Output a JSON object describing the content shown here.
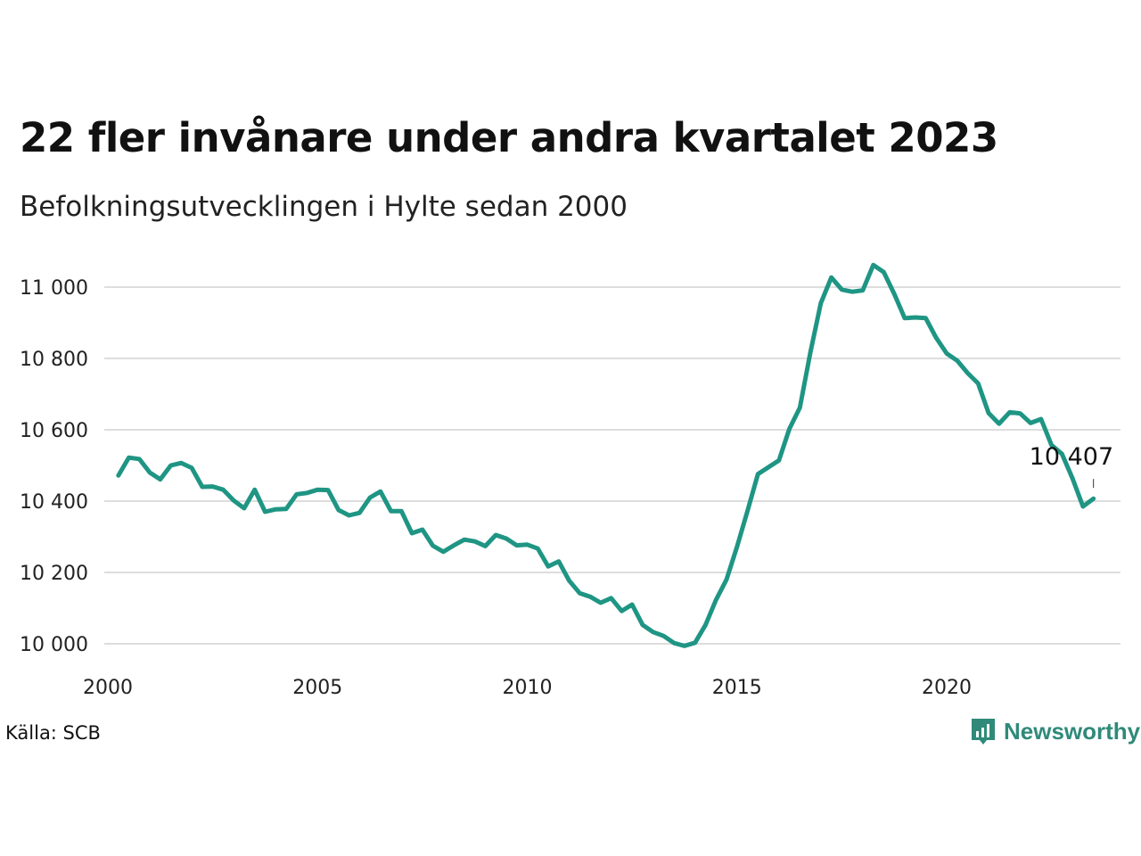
{
  "title": "22 fler invånare under andra kvartalet 2023",
  "subtitle": "Befolkningsutvecklingen i Hylte sedan 2000",
  "source": "Källa: SCB",
  "brand": {
    "name": "Newsworthy",
    "icon": "newsworthy-logo-icon"
  },
  "colors": {
    "line": "#1f9584",
    "grid": "#dddddd",
    "brand": "#2f8a79"
  },
  "chart_data": {
    "type": "line",
    "title": "22 fler invånare under andra kvartalet 2023",
    "subtitle": "Befolkningsutvecklingen i Hylte sedan 2000",
    "xlabel": "",
    "ylabel": "",
    "xlim": [
      2000,
      2024.5
    ],
    "ylim": [
      9950,
      11100
    ],
    "x_ticks": [
      2000,
      2005,
      2010,
      2015,
      2020
    ],
    "x_tick_labels": [
      "2000",
      "2005",
      "2010",
      "2015",
      "2020"
    ],
    "y_ticks": [
      10000,
      10200,
      10400,
      10600,
      10800,
      11000
    ],
    "y_tick_labels": [
      "10 000",
      "10 200",
      "10 400",
      "10 600",
      "10 800",
      "11 000"
    ],
    "grid": "horizontal",
    "last_label": "10 407",
    "series": [
      {
        "x": [
          2000.25,
          2000.5,
          2000.75,
          2001.0,
          2001.25,
          2001.5,
          2001.75,
          2002.0,
          2002.25,
          2002.5,
          2002.75,
          2003.0,
          2003.25,
          2003.5,
          2003.75,
          2004.0,
          2004.25,
          2004.5,
          2004.75,
          2005.0,
          2005.25,
          2005.5,
          2005.75,
          2006.0,
          2006.25,
          2006.5,
          2006.75,
          2007.0,
          2007.25,
          2007.5,
          2007.75,
          2008.0,
          2008.25,
          2008.5,
          2008.75,
          2009.0,
          2009.25,
          2009.5,
          2009.75,
          2010.0,
          2010.25,
          2010.5,
          2010.75,
          2011.0,
          2011.25,
          2011.5,
          2011.75,
          2012.0,
          2012.25,
          2012.5,
          2012.75,
          2013.0,
          2013.25,
          2013.5,
          2013.75,
          2014.0,
          2014.25,
          2014.5,
          2014.75,
          2015.0,
          2015.25,
          2015.5,
          2015.75,
          2016.0,
          2016.25,
          2016.5,
          2016.75,
          2017.0,
          2017.25,
          2017.5,
          2017.75,
          2018.0,
          2018.25,
          2018.5,
          2018.75,
          2019.0,
          2019.25,
          2019.5,
          2019.75,
          2020.0,
          2020.25,
          2020.5,
          2020.75,
          2021.0,
          2021.25,
          2021.5,
          2021.75,
          2022.0,
          2022.25,
          2022.5,
          2022.75,
          2023.0,
          2023.25,
          2023.5
        ],
        "values": [
          10472,
          10522,
          10518,
          10480,
          10461,
          10500,
          10507,
          10493,
          10440,
          10441,
          10432,
          10402,
          10380,
          10432,
          10370,
          10377,
          10378,
          10419,
          10423,
          10432,
          10431,
          10375,
          10360,
          10367,
          10410,
          10427,
          10372,
          10372,
          10310,
          10320,
          10275,
          10258,
          10276,
          10292,
          10287,
          10274,
          10305,
          10295,
          10276,
          10278,
          10267,
          10217,
          10231,
          10177,
          10142,
          10132,
          10115,
          10128,
          10092,
          10110,
          10053,
          10033,
          10022,
          10002,
          9994,
          10003,
          10053,
          10123,
          10180,
          10272,
          10372,
          10476,
          10495,
          10514,
          10603,
          10662,
          10817,
          10955,
          11027,
          10993,
          10987,
          10991,
          11062,
          11042,
          10981,
          10913,
          10915,
          10913,
          10858,
          10814,
          10794,
          10759,
          10730,
          10647,
          10617,
          10649,
          10646,
          10619,
          10630,
          10557,
          10532,
          10464,
          10385,
          10407
        ]
      }
    ]
  }
}
